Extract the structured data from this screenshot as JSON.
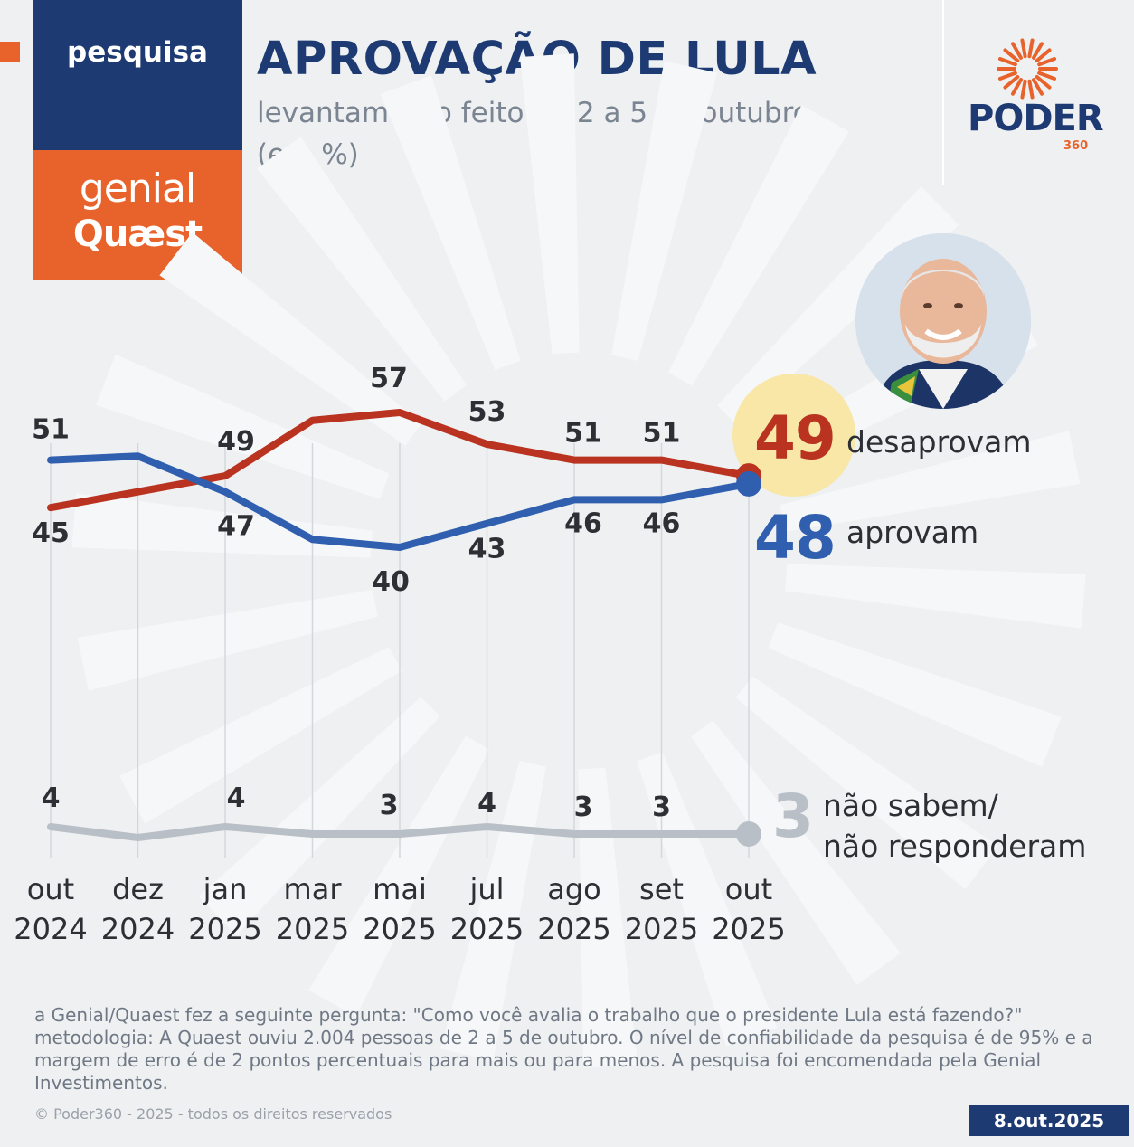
{
  "brand": {
    "tag": "pesquisa",
    "partner_line1": "genial",
    "partner_line2": "Quæst"
  },
  "header": {
    "title": "APROVAÇÃO DE LULA",
    "subtitle_line1": "levantamento feito de 2 a 5 de outubro",
    "subtitle_line2": "(em %)"
  },
  "logo": {
    "word": "PODER",
    "number": "360"
  },
  "colors": {
    "approve": "#2f5fae",
    "disapprove": "#b93320",
    "unknown": "#b9bfc6",
    "highlight": "#f8e7a6",
    "brand_navy": "#1d3a73",
    "brand_orange": "#e8632b"
  },
  "chart_data": {
    "type": "line",
    "categories": [
      [
        "out",
        "2024"
      ],
      [
        "dez",
        "2024"
      ],
      [
        "jan",
        "2025"
      ],
      [
        "mar",
        "2025"
      ],
      [
        "mai",
        "2025"
      ],
      [
        "jul",
        "2025"
      ],
      [
        "ago",
        "2025"
      ],
      [
        "set",
        "2025"
      ],
      [
        "out",
        "2025"
      ]
    ],
    "series": [
      {
        "name": "desaprovam",
        "values": [
          45,
          47,
          49,
          56,
          57,
          53,
          51,
          51,
          49
        ],
        "labels": [
          "45",
          null,
          "49",
          null,
          "57",
          "53",
          "51",
          "51",
          null
        ],
        "end_label": "49"
      },
      {
        "name": "aprovam",
        "values": [
          51,
          51.5,
          47,
          41,
          40,
          43,
          46,
          46,
          48
        ],
        "labels": [
          "51",
          null,
          "47",
          null,
          "40",
          "43",
          "46",
          "46",
          null
        ],
        "end_label": "48"
      },
      {
        "name": "não sabem/ não responderam",
        "values": [
          4,
          2.5,
          4,
          3,
          3,
          4,
          3,
          3,
          3
        ],
        "labels": [
          "4",
          null,
          "4",
          null,
          "3",
          "4",
          "3",
          "3",
          null
        ],
        "end_label": "3"
      }
    ]
  },
  "legend": {
    "disapprove_desc": "desaprovam",
    "approve_desc": "aprovam",
    "unknown_desc_line1": "não sabem/",
    "unknown_desc_line2": "não responderam"
  },
  "footer": {
    "note": "a Genial/Quaest fez a seguinte pergunta: \"Como você avalia o trabalho que o presidente Lula está fazendo?\" metodologia: A Quaest ouviu 2.004 pessoas de 2 a 5 de outubro. O nível de confiabilidade da pesquisa é de 95% e a margem de erro é de 2 pontos percentuais para mais ou para menos. A pesquisa foi encomendada pela Genial Investimentos.",
    "copyright": "© Poder360 - 2025 - todos os direitos reservados",
    "date": "8.out.2025"
  }
}
